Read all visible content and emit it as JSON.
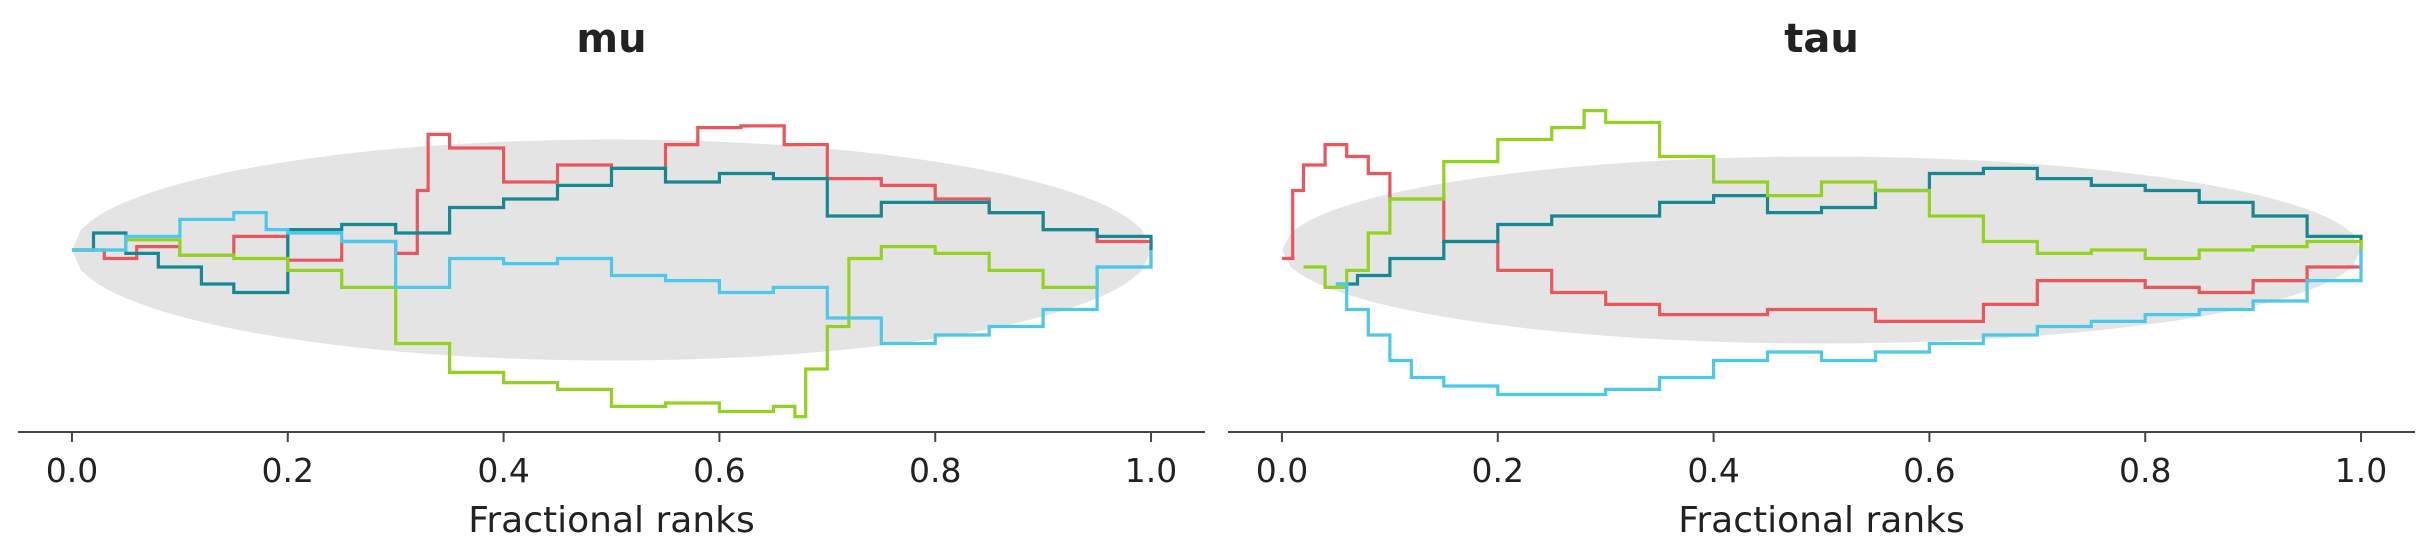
{
  "chart_data": [
    {
      "type": "line",
      "title": "mu",
      "xlabel": "Fractional ranks",
      "ylabel": "",
      "xlim": [
        -0.05,
        1.05
      ],
      "ylim": [
        -1.0,
        1.0
      ],
      "xticks": [
        "0.0",
        "0.2",
        "0.4",
        "0.6",
        "0.8",
        "1.0"
      ],
      "xtick_values": [
        0.0,
        0.2,
        0.4,
        0.6,
        0.8,
        1.0
      ],
      "band_halfwidth": 0.65,
      "series": [
        {
          "color": "#e8575b",
          "x": [
            0.0,
            0.03,
            0.06,
            0.1,
            0.15,
            0.2,
            0.25,
            0.3,
            0.32,
            0.33,
            0.35,
            0.4,
            0.45,
            0.5,
            0.55,
            0.58,
            0.62,
            0.66,
            0.7,
            0.75,
            0.8,
            0.85,
            0.9,
            0.95,
            1.0
          ],
          "y": [
            0.0,
            -0.05,
            0.02,
            -0.03,
            0.08,
            -0.06,
            0.05,
            -0.02,
            0.35,
            0.68,
            0.6,
            0.4,
            0.5,
            0.48,
            0.62,
            0.72,
            0.73,
            0.62,
            0.42,
            0.38,
            0.3,
            0.22,
            0.12,
            0.05,
            0.0
          ]
        },
        {
          "color": "#158892",
          "x": [
            0.0,
            0.02,
            0.05,
            0.08,
            0.12,
            0.15,
            0.2,
            0.25,
            0.3,
            0.35,
            0.4,
            0.45,
            0.5,
            0.55,
            0.6,
            0.65,
            0.7,
            0.75,
            0.8,
            0.85,
            0.9,
            0.95,
            1.0
          ],
          "y": [
            0.0,
            0.1,
            -0.02,
            -0.1,
            -0.2,
            -0.25,
            0.12,
            0.15,
            0.1,
            0.25,
            0.3,
            0.38,
            0.48,
            0.4,
            0.45,
            0.42,
            0.2,
            0.28,
            0.28,
            0.22,
            0.12,
            0.08,
            0.0
          ]
        },
        {
          "color": "#93d221",
          "x": [
            0.0,
            0.05,
            0.1,
            0.15,
            0.2,
            0.25,
            0.3,
            0.35,
            0.4,
            0.45,
            0.5,
            0.55,
            0.6,
            0.65,
            0.67,
            0.68,
            0.7,
            0.72,
            0.75,
            0.8,
            0.85,
            0.9,
            0.95,
            1.0
          ],
          "y": [
            0.0,
            0.06,
            -0.03,
            -0.05,
            -0.12,
            -0.22,
            -0.55,
            -0.72,
            -0.78,
            -0.82,
            -0.92,
            -0.9,
            -0.95,
            -0.92,
            -0.98,
            -0.7,
            -0.45,
            -0.05,
            0.02,
            -0.02,
            -0.12,
            -0.22,
            -0.1,
            0.0
          ]
        },
        {
          "color": "#4bc8ea",
          "x": [
            0.0,
            0.05,
            0.1,
            0.15,
            0.18,
            0.2,
            0.25,
            0.3,
            0.35,
            0.4,
            0.45,
            0.5,
            0.55,
            0.6,
            0.65,
            0.7,
            0.75,
            0.8,
            0.85,
            0.9,
            0.95,
            1.0
          ],
          "y": [
            0.0,
            0.08,
            0.18,
            0.22,
            0.12,
            0.1,
            0.05,
            -0.22,
            -0.05,
            -0.08,
            -0.05,
            -0.15,
            -0.18,
            -0.25,
            -0.22,
            -0.4,
            -0.55,
            -0.5,
            -0.45,
            -0.35,
            -0.1,
            0.0
          ]
        }
      ]
    },
    {
      "type": "line",
      "title": "tau",
      "xlabel": "Fractional ranks",
      "ylabel": "",
      "xlim": [
        -0.05,
        1.05
      ],
      "ylim": [
        -1.0,
        1.0
      ],
      "xticks": [
        "0.0",
        "0.2",
        "0.4",
        "0.6",
        "0.8",
        "1.0"
      ],
      "xtick_values": [
        0.0,
        0.2,
        0.4,
        0.6,
        0.8,
        1.0
      ],
      "band_halfwidth": 0.55,
      "series": [
        {
          "color": "#e8575b",
          "x": [
            0.0,
            0.01,
            0.02,
            0.04,
            0.06,
            0.08,
            0.1,
            0.15,
            0.2,
            0.25,
            0.3,
            0.35,
            0.4,
            0.45,
            0.5,
            0.55,
            0.6,
            0.65,
            0.7,
            0.75,
            0.8,
            0.85,
            0.9,
            0.95,
            1.0
          ],
          "y": [
            -0.05,
            0.35,
            0.5,
            0.62,
            0.55,
            0.45,
            0.3,
            0.05,
            -0.12,
            -0.25,
            -0.32,
            -0.38,
            -0.38,
            -0.35,
            -0.35,
            -0.42,
            -0.42,
            -0.32,
            -0.18,
            -0.18,
            -0.22,
            -0.25,
            -0.18,
            -0.1,
            0.0
          ]
        },
        {
          "color": "#158892",
          "x": [
            0.05,
            0.07,
            0.1,
            0.15,
            0.2,
            0.25,
            0.3,
            0.35,
            0.4,
            0.45,
            0.5,
            0.55,
            0.6,
            0.65,
            0.7,
            0.75,
            0.8,
            0.85,
            0.9,
            0.95,
            1.0
          ],
          "y": [
            -0.2,
            -0.15,
            -0.05,
            0.05,
            0.15,
            0.2,
            0.2,
            0.28,
            0.32,
            0.22,
            0.25,
            0.35,
            0.45,
            0.48,
            0.42,
            0.38,
            0.35,
            0.28,
            0.2,
            0.08,
            0.0
          ]
        },
        {
          "color": "#93d221",
          "x": [
            0.02,
            0.04,
            0.06,
            0.08,
            0.1,
            0.15,
            0.2,
            0.25,
            0.28,
            0.3,
            0.35,
            0.4,
            0.45,
            0.5,
            0.55,
            0.6,
            0.65,
            0.7,
            0.75,
            0.8,
            0.85,
            0.9,
            0.95,
            1.0
          ],
          "y": [
            -0.1,
            -0.22,
            -0.12,
            0.1,
            0.3,
            0.52,
            0.65,
            0.72,
            0.82,
            0.75,
            0.55,
            0.4,
            0.32,
            0.4,
            0.35,
            0.2,
            0.05,
            -0.02,
            0.0,
            -0.05,
            0.0,
            0.02,
            0.05,
            0.0
          ]
        },
        {
          "color": "#4bc8ea",
          "x": [
            0.05,
            0.06,
            0.08,
            0.1,
            0.12,
            0.15,
            0.2,
            0.25,
            0.3,
            0.35,
            0.4,
            0.45,
            0.5,
            0.55,
            0.6,
            0.65,
            0.7,
            0.75,
            0.8,
            0.85,
            0.9,
            0.95,
            1.0
          ],
          "y": [
            -0.2,
            -0.35,
            -0.5,
            -0.65,
            -0.75,
            -0.8,
            -0.85,
            -0.85,
            -0.82,
            -0.75,
            -0.65,
            -0.6,
            -0.65,
            -0.6,
            -0.55,
            -0.5,
            -0.45,
            -0.42,
            -0.38,
            -0.35,
            -0.3,
            -0.18,
            0.0
          ]
        }
      ]
    }
  ]
}
